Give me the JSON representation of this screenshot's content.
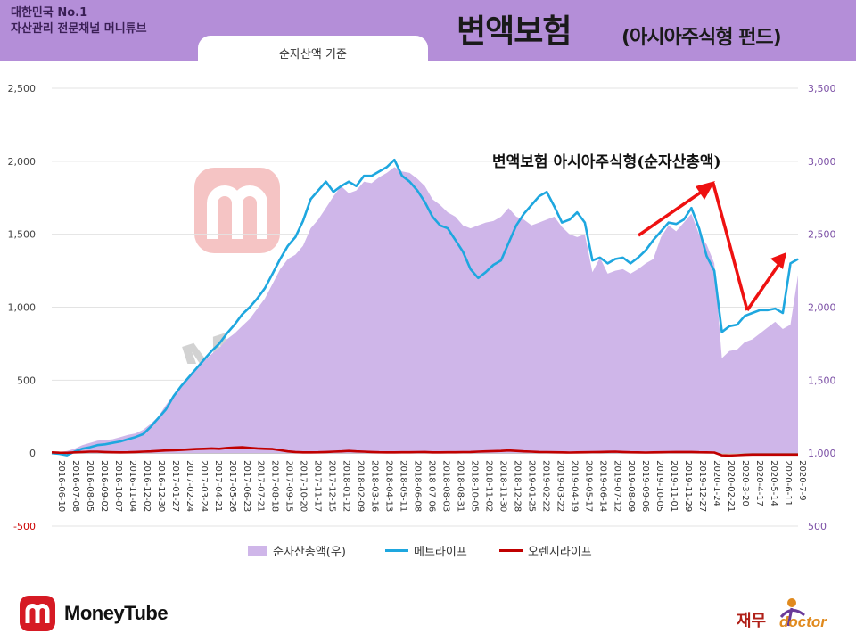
{
  "header": {
    "brand_line1": "대한민국 No.1",
    "brand_line2": "자산관리 전문채널 머니튜브",
    "tab_label": "순자산액 기준",
    "title_main": "변액보험",
    "title_sub": "(아시아주식형 펀드)"
  },
  "annotation": "변액보험 아시아주식형(순자산총액)",
  "watermark_text": "MoneyTube",
  "footer": {
    "logo_text": "MoneyTube",
    "right_logo_korean": "재무",
    "right_logo_english": "doctor"
  },
  "colors": {
    "area": "#cfb6e9",
    "metlife": "#1ea7df",
    "orange": "#c00000",
    "arrow": "#ee1111",
    "header": "#b48ed8"
  },
  "chart_data": {
    "type": "line",
    "title": "",
    "xlabel": "",
    "ylabel": "",
    "ylim": [
      -500,
      2500
    ],
    "y2lim": [
      500,
      3500
    ],
    "yticks": [
      "2,500",
      "2,000",
      "1,500",
      "1,000",
      "500",
      "0",
      "-500"
    ],
    "y2ticks": [
      "3,500",
      "3,000",
      "2,500",
      "2,000",
      "1,500",
      "1,000",
      "500"
    ],
    "x_ticks": [
      "2016-06-10",
      "2016-07-08",
      "2016-08-05",
      "2016-09-02",
      "2016-10-07",
      "2016-11-04",
      "2016-12-02",
      "2016-12-30",
      "2017-01-27",
      "2017-02-24",
      "2017-03-24",
      "2017-04-21",
      "2017-05-26",
      "2017-06-23",
      "2017-07-21",
      "2017-08-18",
      "2017-09-15",
      "2017-10-20",
      "2017-11-17",
      "2017-12-15",
      "2018-01-12",
      "2018-02-09",
      "2018-03-16",
      "2018-04-13",
      "2018-05-11",
      "2018-06-08",
      "2018-07-06",
      "2018-08-03",
      "2018-08-31",
      "2018-10-05",
      "2018-11-02",
      "2018-11-30",
      "2018-12-28",
      "2019-01-25",
      "2019-02-22",
      "2019-03-22",
      "2019-04-19",
      "2019-05-17",
      "2019-06-14",
      "2019-07-12",
      "2019-08-09",
      "2019-09-06",
      "2019-10-05",
      "2019-11-01",
      "2019-11-29",
      "2019-12-27",
      "2020-1-24",
      "2020-02-21",
      "2020-3-20",
      "2020-4-17",
      "2020-5-14",
      "2020-6-11",
      "2020-7-9"
    ],
    "series": [
      {
        "name": "순자산총액(우)",
        "axis": "right",
        "type": "area",
        "values": [
          1005,
          1008,
          1015,
          1030,
          1055,
          1070,
          1085,
          1090,
          1095,
          1110,
          1125,
          1135,
          1160,
          1200,
          1250,
          1330,
          1400,
          1460,
          1520,
          1580,
          1630,
          1680,
          1720,
          1780,
          1820,
          1870,
          1920,
          1990,
          2060,
          2160,
          2260,
          2330,
          2360,
          2420,
          2540,
          2600,
          2680,
          2760,
          2830,
          2780,
          2800,
          2860,
          2850,
          2890,
          2920,
          2960,
          2930,
          2920,
          2880,
          2830,
          2740,
          2700,
          2650,
          2620,
          2560,
          2540,
          2560,
          2580,
          2590,
          2620,
          2680,
          2620,
          2600,
          2560,
          2580,
          2600,
          2620,
          2550,
          2500,
          2480,
          2500,
          2240,
          2340,
          2230,
          2250,
          2260,
          2230,
          2260,
          2300,
          2330,
          2480,
          2560,
          2520,
          2580,
          2640,
          2500,
          2430,
          2300,
          1650,
          1700,
          1710,
          1760,
          1780,
          1820,
          1860,
          1900,
          1850,
          1880,
          2220
        ]
      },
      {
        "name": "메트라이프",
        "axis": "left",
        "type": "line",
        "values": [
          0,
          -5,
          -15,
          10,
          30,
          40,
          55,
          60,
          70,
          80,
          95,
          110,
          130,
          180,
          240,
          300,
          390,
          460,
          520,
          580,
          640,
          700,
          750,
          820,
          880,
          950,
          1000,
          1060,
          1130,
          1230,
          1330,
          1420,
          1480,
          1590,
          1740,
          1800,
          1860,
          1790,
          1830,
          1860,
          1830,
          1900,
          1900,
          1930,
          1960,
          2010,
          1900,
          1860,
          1800,
          1720,
          1620,
          1560,
          1540,
          1460,
          1380,
          1260,
          1200,
          1240,
          1290,
          1320,
          1440,
          1560,
          1640,
          1700,
          1760,
          1790,
          1690,
          1580,
          1600,
          1650,
          1580,
          1320,
          1340,
          1300,
          1330,
          1340,
          1300,
          1340,
          1390,
          1460,
          1520,
          1580,
          1570,
          1600,
          1680,
          1540,
          1350,
          1250,
          830,
          870,
          880,
          940,
          960,
          980,
          980,
          990,
          960,
          1300,
          1330
        ]
      },
      {
        "name": "오렌지라이프",
        "axis": "left",
        "type": "line",
        "values": [
          5,
          3,
          2,
          5,
          8,
          10,
          10,
          8,
          6,
          5,
          6,
          8,
          10,
          12,
          15,
          18,
          20,
          22,
          25,
          28,
          30,
          32,
          30,
          35,
          38,
          40,
          36,
          32,
          30,
          28,
          20,
          12,
          8,
          5,
          5,
          6,
          8,
          10,
          12,
          15,
          12,
          10,
          8,
          6,
          5,
          5,
          6,
          6,
          7,
          8,
          5,
          5,
          6,
          6,
          7,
          8,
          10,
          12,
          14,
          15,
          18,
          15,
          12,
          10,
          8,
          7,
          6,
          5,
          4,
          5,
          6,
          7,
          8,
          9,
          10,
          8,
          6,
          5,
          4,
          5,
          6,
          7,
          8,
          8,
          8,
          6,
          5,
          4,
          -15,
          -16,
          -14,
          -12,
          -10,
          -10,
          -10,
          -10,
          -10,
          -10,
          -10
        ]
      }
    ]
  }
}
